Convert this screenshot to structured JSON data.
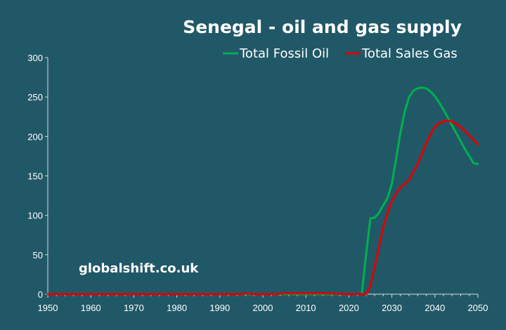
{
  "chart_data": {
    "type": "line",
    "title": "Senegal - oil and gas supply",
    "xlabel": "",
    "ylabel": "",
    "xlim": [
      1950,
      2050
    ],
    "ylim": [
      0,
      300
    ],
    "x_ticks": [
      "1950",
      "1960",
      "1970",
      "1980",
      "1990",
      "2000",
      "2010",
      "2020",
      "2030",
      "2040",
      "2050"
    ],
    "y_ticks": [
      "0",
      "50",
      "100",
      "150",
      "200",
      "250",
      "300"
    ],
    "grid": false,
    "legend_position": "top-right",
    "watermark": "globalshift.co.uk",
    "series": [
      {
        "name": "Total Fossil Oil",
        "color": "#00b050",
        "points": [
          [
            1950,
            0
          ],
          [
            2000,
            0
          ],
          [
            2023,
            0
          ],
          [
            2024,
            50
          ],
          [
            2025,
            96
          ],
          [
            2026,
            97
          ],
          [
            2027,
            103
          ],
          [
            2028,
            113
          ],
          [
            2029,
            122
          ],
          [
            2030,
            140
          ],
          [
            2031,
            172
          ],
          [
            2032,
            205
          ],
          [
            2033,
            232
          ],
          [
            2034,
            250
          ],
          [
            2035,
            258
          ],
          [
            2036,
            261
          ],
          [
            2037,
            262
          ],
          [
            2038,
            261
          ],
          [
            2039,
            257
          ],
          [
            2040,
            251
          ],
          [
            2041,
            243
          ],
          [
            2042,
            234
          ],
          [
            2043,
            224
          ],
          [
            2044,
            214
          ],
          [
            2045,
            204
          ],
          [
            2046,
            194
          ],
          [
            2047,
            184
          ],
          [
            2048,
            175
          ],
          [
            2049,
            166
          ],
          [
            2050,
            165
          ]
        ]
      },
      {
        "name": "Total Sales Gas",
        "color": "#e00000",
        "points": [
          [
            1950,
            0
          ],
          [
            1995,
            0
          ],
          [
            1996,
            1
          ],
          [
            1998,
            0
          ],
          [
            2003,
            0
          ],
          [
            2005,
            1
          ],
          [
            2015,
            1
          ],
          [
            2020,
            0
          ],
          [
            2024,
            0
          ],
          [
            2025,
            10
          ],
          [
            2026,
            35
          ],
          [
            2027,
            60
          ],
          [
            2028,
            85
          ],
          [
            2029,
            103
          ],
          [
            2030,
            118
          ],
          [
            2031,
            128
          ],
          [
            2032,
            135
          ],
          [
            2033,
            140
          ],
          [
            2034,
            145
          ],
          [
            2035,
            155
          ],
          [
            2036,
            165
          ],
          [
            2037,
            178
          ],
          [
            2038,
            192
          ],
          [
            2039,
            203
          ],
          [
            2040,
            212
          ],
          [
            2041,
            217
          ],
          [
            2042,
            219
          ],
          [
            2043,
            220
          ],
          [
            2044,
            219
          ],
          [
            2045,
            216
          ],
          [
            2046,
            212
          ],
          [
            2047,
            207
          ],
          [
            2048,
            201
          ],
          [
            2049,
            196
          ],
          [
            2050,
            190
          ]
        ]
      }
    ]
  }
}
